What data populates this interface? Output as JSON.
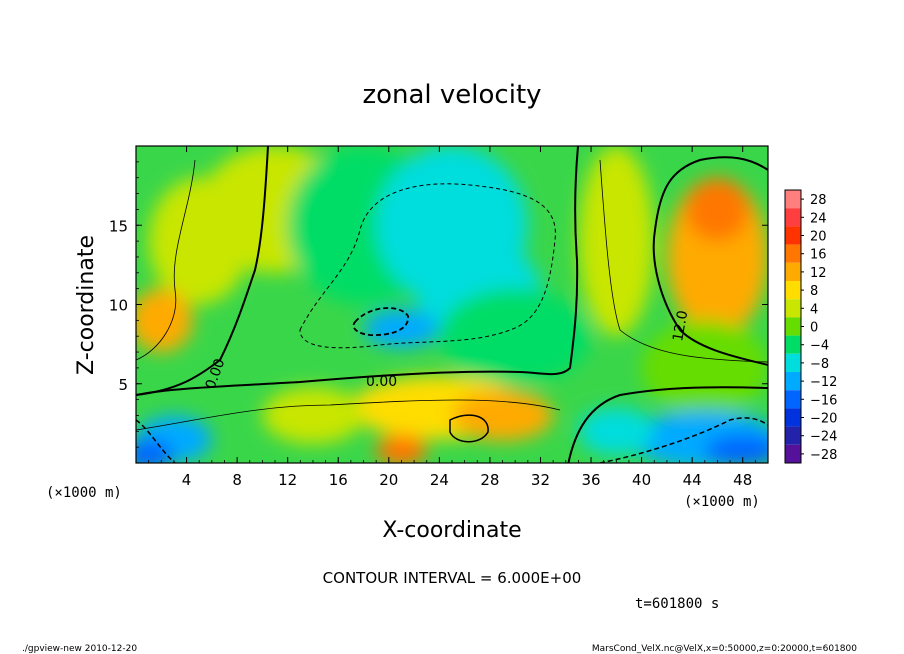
{
  "chart_data": {
    "type": "heatmap",
    "title": "zonal velocity",
    "xlabel": "X-coordinate",
    "ylabel": "Z-coordinate",
    "x_unit_label": "(×1000 m)",
    "y_unit_label": "(×1000 m)",
    "xlim": [
      0,
      50
    ],
    "ylim": [
      0,
      20
    ],
    "x_ticks": [
      4,
      8,
      12,
      16,
      20,
      24,
      28,
      32,
      36,
      40,
      44,
      48
    ],
    "y_ticks": [
      5,
      10,
      15
    ],
    "colorbar": {
      "levels": [
        28,
        24,
        20,
        16,
        12,
        8,
        4,
        0,
        -4,
        -8,
        -12,
        -16,
        -20,
        -24,
        -28
      ],
      "labels": [
        "28",
        "24",
        "20",
        "16",
        "12",
        "8",
        "4",
        "0",
        "−4",
        "−8",
        "−12",
        "−16",
        "−20",
        "−24",
        "−28"
      ],
      "colors": [
        "#ff7f7f",
        "#ff3f3f",
        "#ff3300",
        "#ff7700",
        "#ffaa00",
        "#ffdd00",
        "#c8e600",
        "#66dd00",
        "#00dd66",
        "#00dddd",
        "#00aaff",
        "#0066ff",
        "#0033dd",
        "#2222aa",
        "#551199"
      ]
    },
    "contour_interval": "CONTOUR INTERVAL = 6.000E+00",
    "contour_labels": [
      "0.00",
      "0.00",
      "12.0"
    ],
    "time_label": "t=601800 s",
    "footer_left": "./gpview-new  2010-12-20",
    "footer_right": "MarsCond_VelX.nc@VelX,x=0:50000,z=0:20000,t=601800"
  }
}
